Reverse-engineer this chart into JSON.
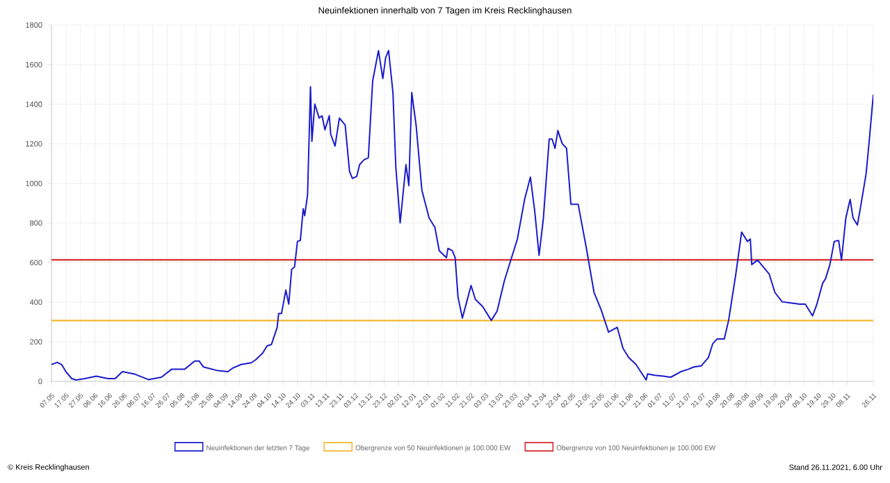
{
  "chart_data": {
    "type": "line",
    "title": "Neuinfektionen innerhalb von 7 Tagen im Kreis Recklinghausen",
    "annotations": [
      "© Kreis Recklinghausen",
      "Stand 26.11.2021, 6.00 Uhr"
    ],
    "series": [
      {
        "name": "Neuinfektionen der letzten 7 Tage",
        "color": "#1a1acc",
        "x": [
          "2020-05-07",
          "2020-05-11",
          "2020-05-14",
          "2020-05-17",
          "2020-05-21",
          "2020-05-24",
          "2020-05-30",
          "2020-06-07",
          "2020-06-15",
          "2020-06-20",
          "2020-06-25",
          "2020-07-03",
          "2020-07-13",
          "2020-07-22",
          "2020-07-29",
          "2020-08-07",
          "2020-08-14",
          "2020-08-17",
          "2020-08-20",
          "2020-08-30",
          "2020-09-06",
          "2020-09-09",
          "2020-09-15",
          "2020-09-22",
          "2020-09-25",
          "2020-09-30",
          "2020-10-03",
          "2020-10-06",
          "2020-10-10",
          "2020-10-11",
          "2020-10-13",
          "2020-10-16",
          "2020-10-18",
          "2020-10-20",
          "2020-10-22",
          "2020-10-24",
          "2020-10-26",
          "2020-10-28",
          "2020-10-29",
          "2020-10-31",
          "2020-11-02",
          "2020-11-03",
          "2020-11-05",
          "2020-11-08",
          "2020-11-10",
          "2020-11-12",
          "2020-11-15",
          "2020-11-16",
          "2020-11-19",
          "2020-11-22",
          "2020-11-26",
          "2020-11-29",
          "2020-12-01",
          "2020-12-04",
          "2020-12-06",
          "2020-12-09",
          "2020-12-12",
          "2020-12-15",
          "2020-12-19",
          "2020-12-22",
          "2020-12-24",
          "2020-12-26",
          "2020-12-29",
          "2020-12-31",
          "2021-01-03",
          "2021-01-07",
          "2021-01-09",
          "2021-01-11",
          "2021-01-14",
          "2021-01-18",
          "2021-01-23",
          "2021-01-27",
          "2021-01-30",
          "2021-02-04",
          "2021-02-05",
          "2021-02-08",
          "2021-02-10",
          "2021-02-12",
          "2021-02-15",
          "2021-02-18",
          "2021-02-21",
          "2021-02-24",
          "2021-03-01",
          "2021-03-07",
          "2021-03-11",
          "2021-03-16",
          "2021-03-20",
          "2021-03-25",
          "2021-03-30",
          "2021-04-03",
          "2021-04-06",
          "2021-04-09",
          "2021-04-12",
          "2021-04-16",
          "2021-04-18",
          "2021-04-20",
          "2021-04-22",
          "2021-04-25",
          "2021-04-28",
          "2021-05-01",
          "2021-05-06",
          "2021-05-09",
          "2021-05-12",
          "2021-05-17",
          "2021-05-22",
          "2021-05-27",
          "2021-06-02",
          "2021-06-06",
          "2021-06-10",
          "2021-06-15",
          "2021-06-22",
          "2021-06-23",
          "2021-06-28",
          "2021-07-04",
          "2021-07-09",
          "2021-07-16",
          "2021-07-21",
          "2021-07-25",
          "2021-07-30",
          "2021-08-04",
          "2021-08-07",
          "2021-08-10",
          "2021-08-15",
          "2021-08-18",
          "2021-08-23",
          "2021-08-27",
          "2021-08-31",
          "2021-09-02",
          "2021-09-03",
          "2021-09-07",
          "2021-09-11",
          "2021-09-15",
          "2021-09-19",
          "2021-09-24",
          "2021-09-29",
          "2021-10-06",
          "2021-10-10",
          "2021-10-15",
          "2021-10-18",
          "2021-10-22",
          "2021-10-24",
          "2021-10-27",
          "2021-10-30",
          "2021-11-02",
          "2021-11-04",
          "2021-11-07",
          "2021-11-10",
          "2021-11-12",
          "2021-11-15",
          "2021-11-17",
          "2021-11-21",
          "2021-11-23",
          "2021-11-26"
        ],
        "values": [
          85,
          96,
          85,
          49,
          14,
          7,
          14,
          26,
          14,
          14,
          49,
          38,
          9,
          21,
          61,
          61,
          103,
          103,
          73,
          54,
          49,
          66,
          85,
          94,
          108,
          143,
          179,
          186,
          273,
          343,
          343,
          461,
          390,
          566,
          578,
          707,
          712,
          872,
          837,
          942,
          1488,
          1213,
          1401,
          1330,
          1342,
          1271,
          1342,
          1248,
          1189,
          1330,
          1295,
          1060,
          1025,
          1036,
          1095,
          1119,
          1130,
          1518,
          1671,
          1530,
          1636,
          1671,
          1459,
          1083,
          801,
          1095,
          989,
          1459,
          1295,
          966,
          825,
          778,
          660,
          625,
          672,
          660,
          625,
          425,
          320,
          402,
          484,
          414,
          378,
          308,
          355,
          508,
          602,
          719,
          919,
          1032,
          860,
          637,
          825,
          1224,
          1224,
          1177,
          1267,
          1201,
          1177,
          895,
          895,
          778,
          660,
          449,
          360,
          249,
          273,
          167,
          120,
          85,
          7,
          38,
          31,
          26,
          21,
          49,
          61,
          73,
          78,
          120,
          190,
          214,
          214,
          308,
          543,
          754,
          707,
          719,
          590,
          613,
          578,
          543,
          449,
          402,
          397,
          390,
          390,
          331,
          390,
          496,
          519,
          590,
          707,
          712,
          613,
          825,
          919,
          825,
          790,
          872,
          1048,
          1201,
          1448
        ]
      }
    ],
    "ref_lines": [
      {
        "axis": "y",
        "value": 307,
        "label": "Obergrenze von 50 Neuinfektionen je 100.000 EW",
        "color": "#f5b82e"
      },
      {
        "axis": "y",
        "value": 614,
        "label": "Obergrenze von 100 Neuinfektionen je 100.000 EW",
        "color": "#d42a2a"
      }
    ],
    "xlim": [
      "2020-05-07",
      "2021-11-26"
    ],
    "xticks": [
      {
        "value": "2020-05-07",
        "label": "07.05"
      },
      {
        "value": "2020-05-17",
        "label": "17.05"
      },
      {
        "value": "2020-05-27",
        "label": "27.05"
      },
      {
        "value": "2020-06-06",
        "label": "06.06"
      },
      {
        "value": "2020-06-16",
        "label": "16.06"
      },
      {
        "value": "2020-06-26",
        "label": "26.06"
      },
      {
        "value": "2020-07-06",
        "label": "06.07"
      },
      {
        "value": "2020-07-16",
        "label": "16.07"
      },
      {
        "value": "2020-07-26",
        "label": "26.07"
      },
      {
        "value": "2020-08-05",
        "label": "05.08"
      },
      {
        "value": "2020-08-15",
        "label": "15.08"
      },
      {
        "value": "2020-08-25",
        "label": "25.08"
      },
      {
        "value": "2020-09-04",
        "label": "04.09"
      },
      {
        "value": "2020-09-14",
        "label": "14.09"
      },
      {
        "value": "2020-09-24",
        "label": "24.09"
      },
      {
        "value": "2020-10-04",
        "label": "04.10"
      },
      {
        "value": "2020-10-14",
        "label": "14.10"
      },
      {
        "value": "2020-10-24",
        "label": "24.10"
      },
      {
        "value": "2020-11-03",
        "label": "03.11"
      },
      {
        "value": "2020-11-13",
        "label": "13.11"
      },
      {
        "value": "2020-11-23",
        "label": "23.11"
      },
      {
        "value": "2020-12-03",
        "label": "03.12"
      },
      {
        "value": "2020-12-13",
        "label": "13.12"
      },
      {
        "value": "2020-12-23",
        "label": "23.12"
      },
      {
        "value": "2021-01-02",
        "label": "02.01"
      },
      {
        "value": "2021-01-12",
        "label": "12.01"
      },
      {
        "value": "2021-01-22",
        "label": "22.01"
      },
      {
        "value": "2021-02-01",
        "label": "01.02"
      },
      {
        "value": "2021-02-11",
        "label": "11.02"
      },
      {
        "value": "2021-02-21",
        "label": "21.02"
      },
      {
        "value": "2021-03-03",
        "label": "03.03"
      },
      {
        "value": "2021-03-13",
        "label": "13.03"
      },
      {
        "value": "2021-03-23",
        "label": "23.03"
      },
      {
        "value": "2021-04-02",
        "label": "02.04"
      },
      {
        "value": "2021-04-12",
        "label": "12.04"
      },
      {
        "value": "2021-04-22",
        "label": "22.04"
      },
      {
        "value": "2021-05-02",
        "label": "02.05"
      },
      {
        "value": "2021-05-12",
        "label": "12.05"
      },
      {
        "value": "2021-05-22",
        "label": "22.05"
      },
      {
        "value": "2021-06-01",
        "label": "01.06"
      },
      {
        "value": "2021-06-11",
        "label": "11.06"
      },
      {
        "value": "2021-06-21",
        "label": "21.06"
      },
      {
        "value": "2021-07-01",
        "label": "01.07"
      },
      {
        "value": "2021-07-11",
        "label": "11.07"
      },
      {
        "value": "2021-07-21",
        "label": "21.07"
      },
      {
        "value": "2021-07-31",
        "label": "31.07"
      },
      {
        "value": "2021-08-10",
        "label": "10.08"
      },
      {
        "value": "2021-08-20",
        "label": "20.08"
      },
      {
        "value": "2021-08-30",
        "label": "30.08"
      },
      {
        "value": "2021-09-09",
        "label": "09.09"
      },
      {
        "value": "2021-09-19",
        "label": "19.09"
      },
      {
        "value": "2021-09-29",
        "label": "29.09"
      },
      {
        "value": "2021-10-09",
        "label": "09.10"
      },
      {
        "value": "2021-10-19",
        "label": "19.10"
      },
      {
        "value": "2021-10-29",
        "label": "29.10"
      },
      {
        "value": "2021-11-08",
        "label": "08.11"
      },
      {
        "value": "2021-11-26",
        "label": "26.11"
      }
    ],
    "ylim": [
      0,
      1800
    ],
    "yticks": [
      0,
      200,
      400,
      600,
      800,
      1000,
      1200,
      1400,
      1600,
      1800
    ],
    "grid": true,
    "legend": "bottom"
  }
}
